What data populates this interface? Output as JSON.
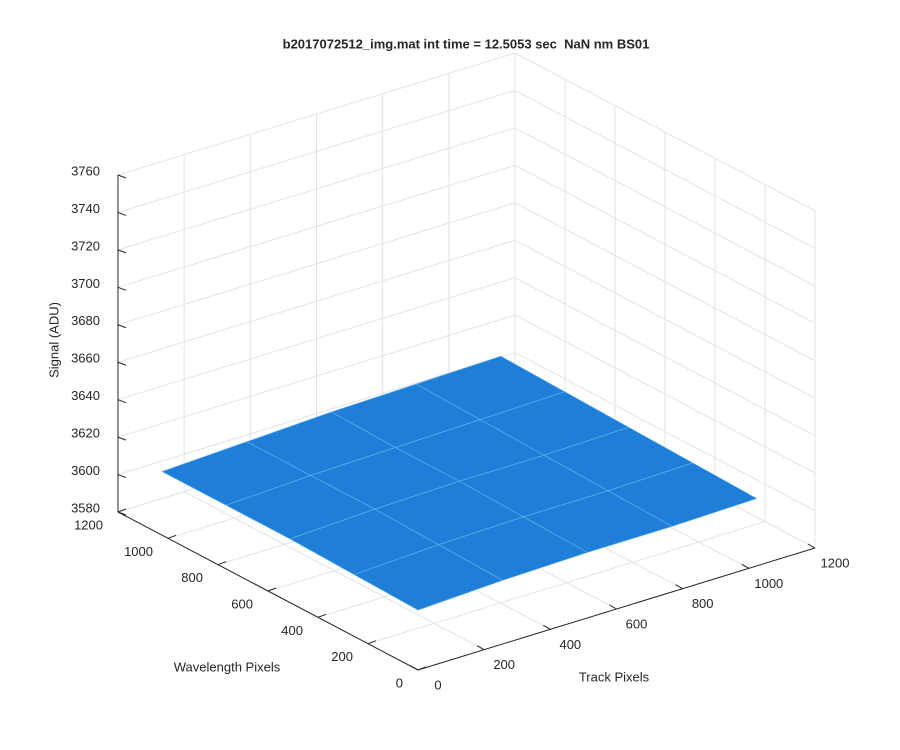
{
  "chart_data": {
    "type": "surface3d",
    "title": "b2017072512_img.mat int time = 12.5053 sec  NaN nm BS01",
    "xlabel": "Track Pixels",
    "ylabel": "Wavelength Pixels",
    "zlabel": "Signal (ADU)",
    "xlim": [
      0,
      1200
    ],
    "ylim": [
      0,
      1200
    ],
    "zlim": [
      3580,
      3760
    ],
    "xticks": [
      0,
      200,
      400,
      600,
      800,
      1000,
      1200
    ],
    "yticks": [
      0,
      200,
      400,
      600,
      800,
      1000,
      1200
    ],
    "zticks": [
      3580,
      3600,
      3620,
      3640,
      3660,
      3680,
      3700,
      3720,
      3740,
      3760
    ],
    "grid": true,
    "surface": {
      "color": "#1f7fd8",
      "edge_color": "#62b2ee",
      "x": [
        0,
        256,
        512,
        768,
        1024
      ],
      "y": [
        0,
        256,
        512,
        768,
        1024
      ],
      "z": [
        [
          3612,
          3614,
          3615,
          3615,
          3616
        ],
        [
          3613,
          3615,
          3616,
          3616,
          3617
        ],
        [
          3614,
          3616,
          3617,
          3617,
          3618
        ],
        [
          3614,
          3616,
          3617,
          3618,
          3619
        ],
        [
          3614,
          3616,
          3618,
          3619,
          3620
        ]
      ]
    }
  }
}
